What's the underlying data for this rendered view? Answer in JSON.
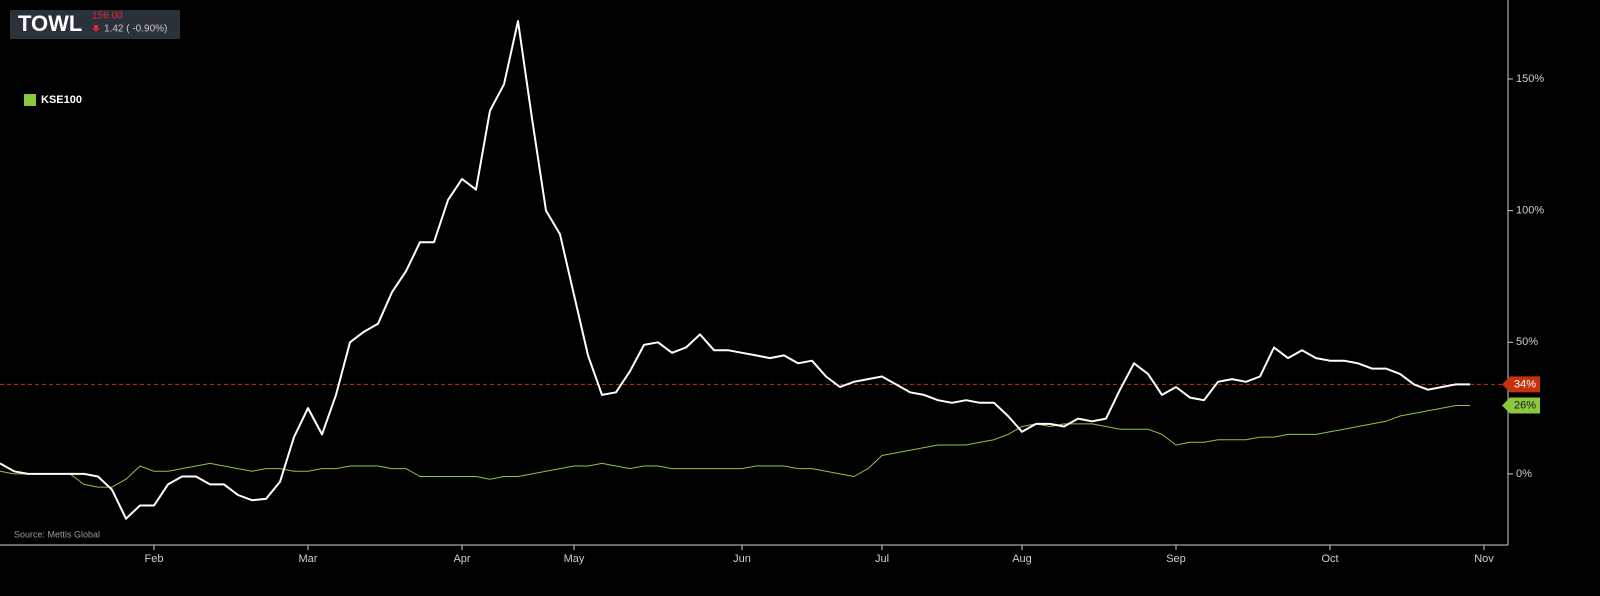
{
  "chart_data": {
    "type": "line",
    "header": {
      "price": "156.00",
      "change": "1.42 ( -0.90%)"
    },
    "source": "Source: Mettis Global",
    "categories": [
      null,
      null,
      null,
      null,
      null,
      null,
      null,
      null,
      null,
      null,
      null,
      "Feb",
      null,
      null,
      null,
      null,
      null,
      null,
      null,
      null,
      null,
      null,
      "Mar",
      null,
      null,
      null,
      null,
      null,
      null,
      null,
      null,
      null,
      null,
      "Apr",
      null,
      null,
      null,
      null,
      null,
      null,
      null,
      "May",
      null,
      null,
      null,
      null,
      null,
      null,
      null,
      null,
      null,
      null,
      null,
      "Jun",
      null,
      null,
      null,
      null,
      null,
      null,
      null,
      null,
      null,
      "Jul",
      null,
      null,
      null,
      null,
      null,
      null,
      null,
      null,
      null,
      "Aug",
      null,
      null,
      null,
      null,
      null,
      null,
      null,
      null,
      null,
      null,
      "Sep",
      null,
      null,
      null,
      null,
      null,
      null,
      null,
      null,
      null,
      null,
      "Oct",
      null,
      null,
      null,
      null,
      null,
      null,
      null,
      null,
      null,
      null,
      "Nov"
    ],
    "series": [
      {
        "name": "TOWL",
        "color": "#ffffff",
        "width": 2,
        "in_legend": false,
        "tag_color": "#c4320e",
        "tag_text": "#ffffff",
        "values": [
          4,
          1,
          0,
          0,
          0,
          0,
          0,
          -1,
          -6,
          -17,
          -12,
          -12,
          -4,
          -1,
          -1,
          -4,
          -4,
          -8,
          -10,
          -9.5,
          -3,
          14,
          25,
          15,
          30,
          50,
          54,
          57,
          69,
          77,
          88,
          88,
          104,
          112,
          108,
          138,
          148,
          172,
          135,
          100,
          91,
          68,
          45,
          30,
          31,
          39,
          49,
          50,
          46,
          48,
          53,
          47,
          47,
          46,
          45,
          44,
          45,
          42,
          43,
          37,
          33,
          35,
          36,
          37,
          34,
          31,
          30,
          28,
          27,
          28,
          27,
          27,
          22,
          16,
          19,
          19,
          18,
          21,
          20,
          21,
          32,
          42,
          38,
          30,
          33,
          29,
          28,
          35,
          36,
          35,
          37,
          48,
          44,
          47,
          44,
          43,
          43,
          42,
          40,
          40,
          38,
          34,
          32,
          33,
          34,
          34,
          null
        ],
        "value_labels": [
          null,
          null,
          null,
          null,
          null,
          null,
          null,
          null,
          null,
          null,
          null,
          null,
          null,
          null,
          null,
          null,
          null,
          null,
          null,
          null,
          null,
          null,
          null,
          null,
          null,
          null,
          null,
          null,
          null,
          null,
          null,
          null,
          null,
          null,
          null,
          null,
          null,
          null,
          null,
          null,
          null,
          null,
          null,
          null,
          null,
          null,
          null,
          null,
          null,
          null,
          null,
          null,
          null,
          null,
          null,
          null,
          null,
          null,
          null,
          null,
          null,
          null,
          null,
          null,
          null,
          null,
          null,
          null,
          null,
          null,
          null,
          null,
          null,
          null,
          null,
          null,
          null,
          null,
          null,
          null,
          null,
          null,
          null,
          null,
          null,
          null,
          null,
          null,
          null,
          null,
          null,
          null,
          null,
          null,
          null,
          null,
          null,
          null,
          null,
          null,
          null,
          null,
          null,
          null,
          null,
          "34%",
          null
        ]
      },
      {
        "name": "KSE100",
        "color": "#8dc63f",
        "width": 1,
        "in_legend": true,
        "tag_color": "#8dc63f",
        "tag_text": "#1a1a1a",
        "values": [
          1,
          0,
          0,
          0,
          0,
          0,
          -4,
          -5,
          -5,
          -2,
          3,
          1,
          1,
          2,
          3,
          4,
          3,
          2,
          1,
          2,
          2,
          1,
          1,
          2,
          2,
          3,
          3,
          3,
          2,
          2,
          -1,
          -1,
          -1,
          -1,
          -1,
          -2,
          -1,
          -1,
          0,
          1,
          2,
          3,
          3,
          4,
          3,
          2,
          3,
          3,
          2,
          2,
          2,
          2,
          2,
          2,
          3,
          3,
          3,
          2,
          2,
          1,
          0,
          -1,
          2,
          7,
          8,
          9,
          10,
          11,
          11,
          11,
          12,
          13,
          15,
          18,
          19,
          18,
          19,
          19,
          19,
          18,
          17,
          17,
          17,
          15,
          11,
          12,
          12,
          13,
          13,
          13,
          14,
          14,
          15,
          15,
          15,
          16,
          17,
          18,
          19,
          20,
          22,
          23,
          24,
          25,
          26,
          26,
          null
        ],
        "value_labels": [
          null,
          null,
          null,
          null,
          null,
          null,
          null,
          null,
          null,
          null,
          null,
          null,
          null,
          null,
          null,
          null,
          null,
          null,
          null,
          null,
          null,
          null,
          null,
          null,
          null,
          null,
          null,
          null,
          null,
          null,
          null,
          null,
          null,
          null,
          null,
          null,
          null,
          null,
          null,
          null,
          null,
          null,
          null,
          null,
          null,
          null,
          null,
          null,
          null,
          null,
          null,
          null,
          null,
          null,
          null,
          null,
          null,
          null,
          null,
          null,
          null,
          null,
          null,
          null,
          null,
          null,
          null,
          null,
          null,
          null,
          null,
          null,
          null,
          null,
          null,
          null,
          null,
          null,
          null,
          null,
          null,
          null,
          null,
          null,
          null,
          null,
          null,
          null,
          null,
          null,
          null,
          null,
          null,
          null,
          null,
          null,
          null,
          null,
          null,
          null,
          null,
          null,
          null,
          null,
          null,
          "26%",
          null
        ]
      }
    ],
    "ylim": [
      -27,
      180
    ],
    "yticks": [
      {
        "value": 0,
        "label": "0%"
      },
      {
        "value": 50,
        "label": "50%"
      },
      {
        "value": 100,
        "label": "100%"
      },
      {
        "value": 150,
        "label": "150%"
      }
    ],
    "grid": false
  }
}
